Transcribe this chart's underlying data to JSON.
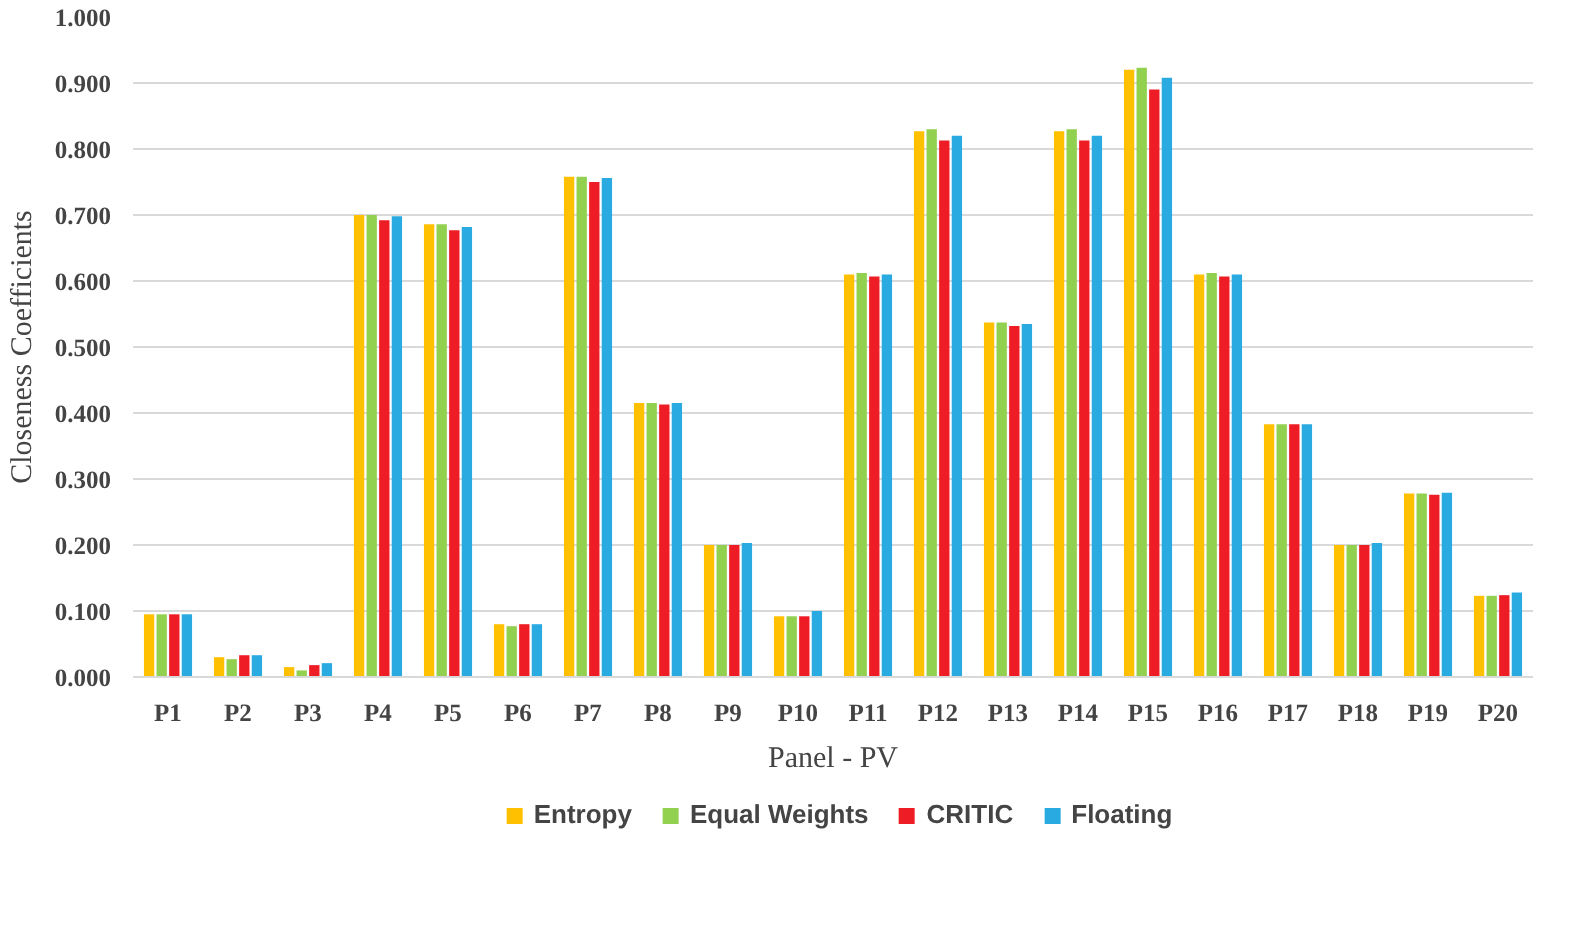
{
  "chart_data": {
    "type": "bar",
    "xlabel": "Panel - PV",
    "ylabel": "Closeness Coefficients",
    "categories": [
      "P1",
      "P2",
      "P3",
      "P4",
      "P5",
      "P6",
      "P7",
      "P8",
      "P9",
      "P10",
      "P11",
      "P12",
      "P13",
      "P14",
      "P15",
      "P16",
      "P17",
      "P18",
      "P19",
      "P20"
    ],
    "series": [
      {
        "name": "Entropy",
        "color": "#ffc000",
        "values": [
          0.095,
          0.03,
          0.015,
          0.7,
          0.686,
          0.08,
          0.758,
          0.415,
          0.2,
          0.092,
          0.61,
          0.827,
          0.537,
          0.827,
          0.92,
          0.61,
          0.383,
          0.2,
          0.278,
          0.123
        ]
      },
      {
        "name": "Equal Weights",
        "color": "#92d050",
        "values": [
          0.095,
          0.027,
          0.01,
          0.7,
          0.686,
          0.077,
          0.758,
          0.415,
          0.2,
          0.092,
          0.612,
          0.83,
          0.537,
          0.83,
          0.923,
          0.612,
          0.383,
          0.2,
          0.278,
          0.123
        ]
      },
      {
        "name": "CRITIC",
        "color": "#ee1c25",
        "values": [
          0.095,
          0.033,
          0.018,
          0.692,
          0.677,
          0.08,
          0.75,
          0.413,
          0.2,
          0.092,
          0.607,
          0.813,
          0.532,
          0.813,
          0.89,
          0.607,
          0.383,
          0.2,
          0.276,
          0.124
        ]
      },
      {
        "name": "Floating",
        "color": "#29abe2",
        "values": [
          0.095,
          0.033,
          0.021,
          0.698,
          0.682,
          0.08,
          0.756,
          0.415,
          0.203,
          0.1,
          0.61,
          0.82,
          0.535,
          0.82,
          0.908,
          0.61,
          0.383,
          0.203,
          0.279,
          0.128
        ]
      }
    ],
    "ylim": [
      0,
      1.0
    ],
    "yticks": [
      {
        "value": 0,
        "label": "0.000"
      },
      {
        "value": 0.1,
        "label": "0.100"
      },
      {
        "value": 0.2,
        "label": "0.200"
      },
      {
        "value": 0.3,
        "label": "0.300"
      },
      {
        "value": 0.4,
        "label": "0.400"
      },
      {
        "value": 0.5,
        "label": "0.500"
      },
      {
        "value": 0.6,
        "label": "0.600"
      },
      {
        "value": 0.7,
        "label": "0.700"
      },
      {
        "value": 0.8,
        "label": "0.800"
      },
      {
        "value": 0.9,
        "label": "0.900"
      },
      {
        "value": 1.0,
        "label": "1.000"
      }
    ],
    "grid": "y",
    "legend": "bottom"
  }
}
